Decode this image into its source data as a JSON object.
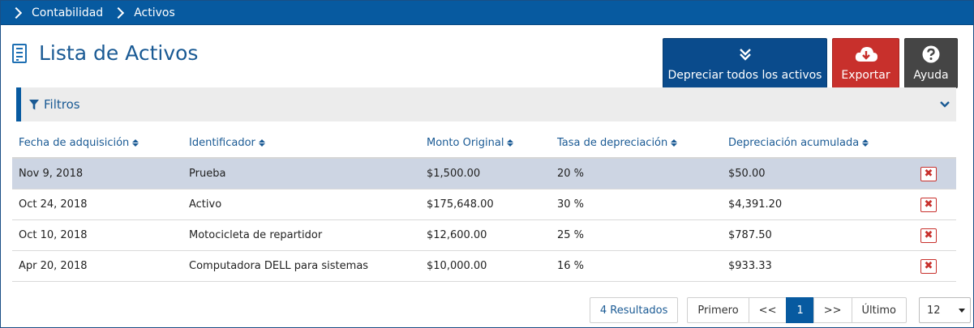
{
  "breadcrumb": [
    "Contabilidad",
    "Activos"
  ],
  "page": {
    "title": "Lista de Activos"
  },
  "actions": {
    "depreciate_all": "Depreciar todos los activos",
    "export": "Exportar",
    "help": "Ayuda"
  },
  "filters": {
    "label": "Filtros"
  },
  "table": {
    "headers": [
      "Fecha de adquisición",
      "Identificador",
      "Monto Original",
      "Tasa de depreciación",
      "Depreciación acumulada"
    ],
    "rows": [
      {
        "date": "Nov 9, 2018",
        "id": "Prueba",
        "amount": "$1,500.00",
        "rate": "20 %",
        "accum": "$50.00",
        "selected": true
      },
      {
        "date": "Oct 24, 2018",
        "id": "Activo",
        "amount": "$175,648.00",
        "rate": "30 %",
        "accum": "$4,391.20",
        "selected": false
      },
      {
        "date": "Oct 10, 2018",
        "id": "Motocicleta de repartidor",
        "amount": "$12,600.00",
        "rate": "25 %",
        "accum": "$787.50",
        "selected": false
      },
      {
        "date": "Apr 20, 2018",
        "id": "Computadora DELL para sistemas",
        "amount": "$10,000.00",
        "rate": "16 %",
        "accum": "$933.33",
        "selected": false
      }
    ]
  },
  "pagination": {
    "results": "4 Resultados",
    "first": "Primero",
    "prev": "<<",
    "current": "1",
    "next": ">>",
    "last": "Último",
    "page_size": "12"
  },
  "colors": {
    "brand_blue": "#075aa0",
    "dark_blue": "#0a4b8c",
    "danger_red": "#c8302c",
    "help_gray": "#454545",
    "selected_row": "#cdd5e3"
  },
  "icons": {
    "breadcrumb_separator": "chevron-right-icon",
    "title": "report-document-icon",
    "depreciate_all": "double-chevron-down-icon",
    "export": "cloud-download-icon",
    "help": "question-circle-icon",
    "filters": "filter-funnel-icon",
    "filters_toggle": "chevron-down-icon",
    "sort": "sort-icon",
    "delete": "close-icon"
  }
}
